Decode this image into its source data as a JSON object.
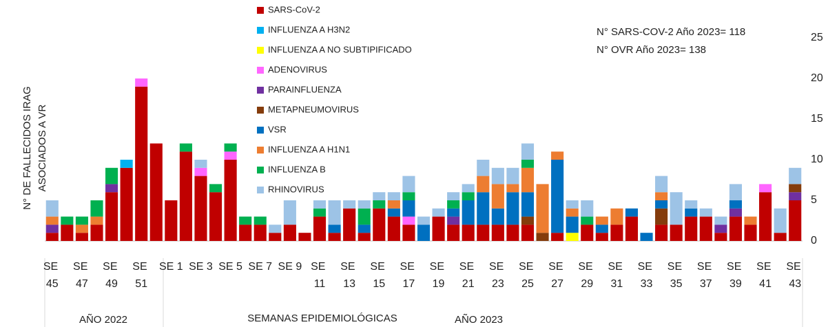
{
  "chart_data": {
    "type": "stacked-bar",
    "y_label": [
      "N° DE FALLECIDOS IRAG",
      "ASOCIADOS A VR"
    ],
    "annotations": [
      "N° SARS-COV-2 Año 2023= 118",
      "N° OVR Año 2023= 138"
    ],
    "group_labels": [
      "AÑO 2022",
      "SEMANAS EPIDEMIOLÓGICAS",
      "AÑO 2023"
    ],
    "categories": [
      "SE 45",
      null,
      "SE 47",
      null,
      "SE 49",
      null,
      "SE 51",
      null,
      "SE 1",
      null,
      "SE 3",
      null,
      "SE 5",
      null,
      "SE 7",
      null,
      "SE 9",
      null,
      "SE 11",
      null,
      "SE 13",
      null,
      "SE 15",
      null,
      "SE 17",
      null,
      "SE 19",
      null,
      "SE 21",
      null,
      "SE 23",
      null,
      "SE 25",
      null,
      "SE 27",
      null,
      "SE 29",
      null,
      "SE 31",
      null,
      "SE 33",
      null,
      "SE 35",
      null,
      "SE 37",
      null,
      "SE 39",
      null,
      "SE 41",
      null,
      "SE 43"
    ],
    "series": [
      {
        "name": "SARS-CoV-2",
        "color": "#c00000",
        "values": [
          1,
          2,
          1,
          2,
          6,
          9,
          19,
          12,
          5,
          11,
          8,
          6,
          10,
          2,
          2,
          1,
          2,
          1,
          3,
          1,
          4,
          1,
          4,
          3,
          2,
          0,
          3,
          2,
          2,
          2,
          2,
          2,
          2,
          0,
          1,
          0,
          2,
          1,
          2,
          3,
          0,
          2,
          2,
          3,
          3,
          1,
          3,
          2,
          6,
          1,
          5
        ]
      },
      {
        "name": "INFLUENZA A H3N2",
        "color": "#00b0f0",
        "values": [
          0,
          0,
          0,
          0,
          0,
          1,
          0,
          0,
          0,
          0,
          0,
          0,
          0,
          0,
          0,
          0,
          0,
          0,
          0,
          0,
          0,
          0,
          0,
          0,
          0,
          0,
          0,
          0,
          0,
          0,
          0,
          0,
          0,
          0,
          0,
          0,
          0,
          0,
          0,
          0,
          0,
          0,
          0,
          0,
          0,
          0,
          0,
          0,
          0,
          0,
          0
        ]
      },
      {
        "name": "INFLUENZA A NO SUBTIPIFICADO",
        "color": "#ffff00",
        "values": [
          0,
          0,
          0,
          0,
          0,
          0,
          0,
          0,
          0,
          0,
          0,
          0,
          0,
          0,
          0,
          0,
          0,
          0,
          0,
          0,
          0,
          0,
          0,
          0,
          0,
          0,
          0,
          0,
          0,
          0,
          0,
          0,
          0,
          0,
          0,
          1,
          0,
          0,
          0,
          0,
          0,
          0,
          0,
          0,
          0,
          0,
          0,
          0,
          0,
          0,
          0
        ]
      },
      {
        "name": "ADENOVIRUS",
        "color": "#ff66ff",
        "values": [
          0,
          0,
          0,
          0,
          0,
          0,
          1,
          0,
          0,
          0,
          1,
          0,
          1,
          0,
          0,
          0,
          0,
          0,
          0,
          0,
          0,
          0,
          0,
          0,
          1,
          0,
          0,
          0,
          0,
          0,
          0,
          0,
          0,
          0,
          0,
          0,
          0,
          0,
          0,
          0,
          0,
          0,
          0,
          0,
          0,
          0,
          0,
          0,
          1,
          0,
          0
        ]
      },
      {
        "name": "PARAINFLUENZA",
        "color": "#7030a0",
        "values": [
          1,
          0,
          0,
          0,
          1,
          0,
          0,
          0,
          0,
          0,
          0,
          0,
          0,
          0,
          0,
          0,
          0,
          0,
          0,
          0,
          0,
          0,
          0,
          0,
          0,
          0,
          0,
          1,
          0,
          0,
          0,
          0,
          0,
          0,
          0,
          0,
          0,
          0,
          0,
          0,
          0,
          0,
          0,
          0,
          0,
          1,
          1,
          0,
          0,
          0,
          1
        ]
      },
      {
        "name": "METAPNEUMOVIRUS",
        "color": "#843c0c",
        "values": [
          0,
          0,
          0,
          0,
          0,
          0,
          0,
          0,
          0,
          0,
          0,
          0,
          0,
          0,
          0,
          0,
          0,
          0,
          0,
          0,
          0,
          0,
          0,
          0,
          0,
          0,
          0,
          0,
          0,
          0,
          0,
          0,
          1,
          1,
          0,
          0,
          0,
          0,
          0,
          0,
          0,
          2,
          0,
          0,
          0,
          0,
          0,
          0,
          0,
          0,
          1
        ]
      },
      {
        "name": "VSR",
        "color": "#0070c0",
        "values": [
          0,
          0,
          0,
          0,
          0,
          0,
          0,
          0,
          0,
          0,
          0,
          0,
          0,
          0,
          0,
          0,
          0,
          0,
          0,
          1,
          0,
          1,
          0,
          1,
          2,
          2,
          0,
          1,
          3,
          4,
          2,
          4,
          3,
          0,
          9,
          2,
          0,
          1,
          0,
          1,
          1,
          1,
          0,
          1,
          0,
          0,
          1,
          0,
          0,
          0,
          0
        ]
      },
      {
        "name": "INFLUENZA A H1N1",
        "color": "#ed7d31",
        "values": [
          1,
          0,
          1,
          1,
          0,
          0,
          0,
          0,
          0,
          0,
          0,
          0,
          0,
          0,
          0,
          0,
          0,
          0,
          0,
          0,
          0,
          0,
          0,
          1,
          0,
          0,
          0,
          0,
          0,
          2,
          3,
          1,
          3,
          6,
          1,
          1,
          0,
          1,
          2,
          0,
          0,
          1,
          0,
          0,
          0,
          0,
          0,
          1,
          0,
          0,
          0
        ]
      },
      {
        "name": "INFLUENZA B",
        "color": "#00b050",
        "values": [
          0,
          1,
          1,
          2,
          2,
          0,
          0,
          0,
          0,
          1,
          0,
          1,
          1,
          1,
          1,
          0,
          0,
          0,
          1,
          0,
          0,
          2,
          1,
          0,
          1,
          0,
          0,
          1,
          1,
          0,
          0,
          0,
          1,
          0,
          0,
          0,
          1,
          0,
          0,
          0,
          0,
          0,
          0,
          0,
          0,
          0,
          0,
          0,
          0,
          0,
          0
        ]
      },
      {
        "name": "RHINOVIRUS",
        "color": "#9dc3e6",
        "values": [
          2,
          0,
          0,
          0,
          0,
          0,
          0,
          0,
          0,
          0,
          1,
          0,
          0,
          0,
          0,
          1,
          3,
          0,
          1,
          3,
          1,
          1,
          1,
          1,
          2,
          1,
          1,
          1,
          1,
          2,
          2,
          2,
          2,
          0,
          0,
          1,
          2,
          0,
          0,
          0,
          0,
          2,
          4,
          1,
          1,
          1,
          2,
          0,
          0,
          3,
          2
        ]
      }
    ],
    "ylim": [
      0,
      25
    ],
    "yticks": [
      0,
      5,
      10,
      15,
      20,
      25
    ],
    "y_axis_side": "right"
  }
}
